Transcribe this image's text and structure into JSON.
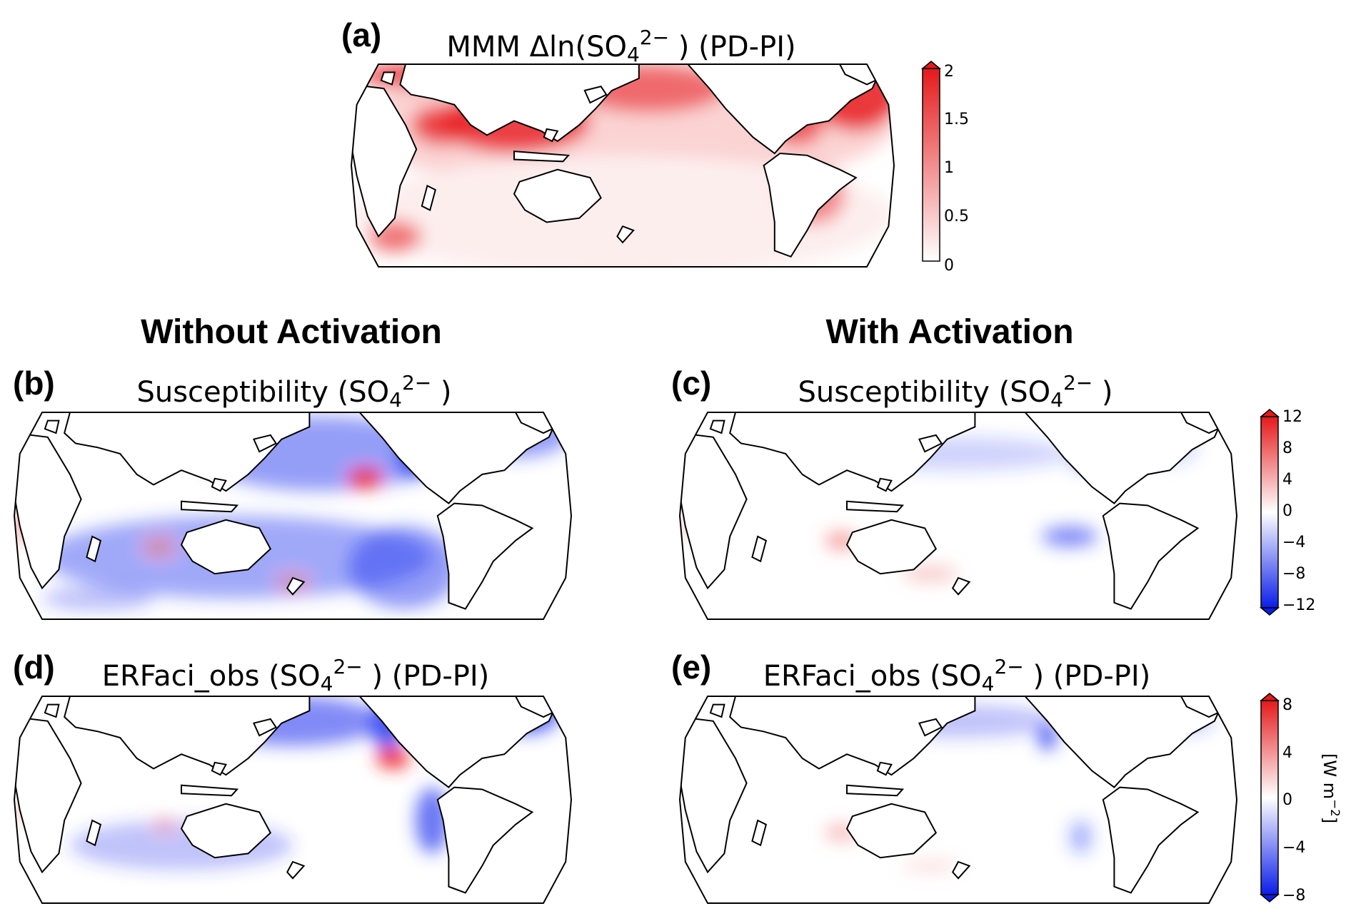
{
  "panels": {
    "a": {
      "letter": "(a)",
      "title_pre": "MMM Δln(SO",
      "title_sub": "4",
      "title_sup": "2−",
      "title_post": " ) (PD-PI)"
    },
    "b": {
      "letter": "(b)",
      "title_pre": "Susceptibility (SO",
      "title_sub": "4",
      "title_sup": "2−",
      "title_post": " )"
    },
    "c": {
      "letter": "(c)",
      "title_pre": "Susceptibility (SO",
      "title_sub": "4",
      "title_sup": "2−",
      "title_post": " )"
    },
    "d": {
      "letter": "(d)",
      "title_pre": "ERFaci_obs (SO",
      "title_sub": "4",
      "title_sup": "2−",
      "title_post": " ) (PD-PI)"
    },
    "e": {
      "letter": "(e)",
      "title_pre": "ERFaci_obs (SO",
      "title_sub": "4",
      "title_sup": "2−",
      "title_post": " ) (PD-PI)"
    }
  },
  "section_titles": {
    "left": "Without Activation",
    "right": "With Activation"
  },
  "colorbars": {
    "a": {
      "ticks": [
        "2",
        "1.5",
        "1",
        "0.5",
        "0"
      ],
      "low": "#ffffff",
      "high": "#e41a1c"
    },
    "bc": {
      "ticks": [
        "12",
        "8",
        "4",
        "0",
        "−4",
        "−8",
        "−12"
      ],
      "low": "#0a1ee8",
      "mid": "#ffffff",
      "high": "#e41a1c"
    },
    "de": {
      "ticks": [
        "8",
        "4",
        "0",
        "−4",
        "−8"
      ],
      "low": "#0a1ee8",
      "mid": "#ffffff",
      "high": "#e41a1c"
    }
  },
  "units": {
    "de_pre": "[W m",
    "de_sup": "−2",
    "de_post": "]"
  },
  "colors": {
    "land": "#ffffff",
    "coast": "#000000",
    "red": "#e8262a",
    "blue": "#2b3df0"
  }
}
